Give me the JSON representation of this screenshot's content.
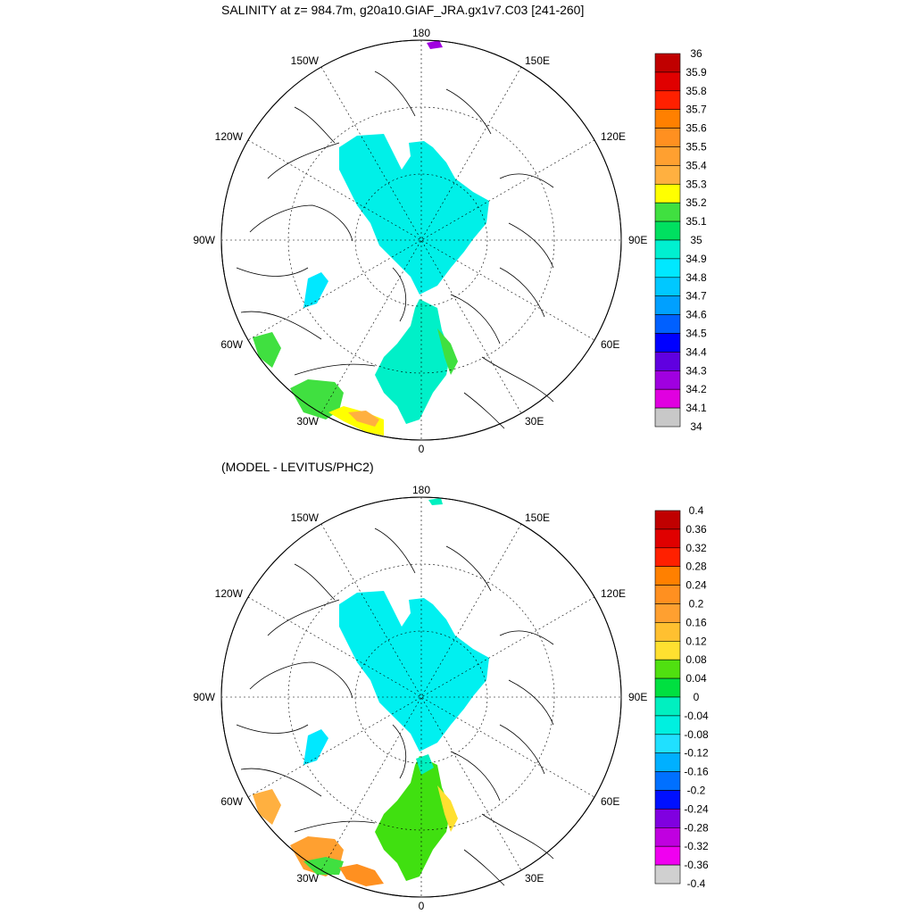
{
  "top_panel": {
    "title": "SALINITY at z= 984.7m, g20a10.GIAF_JRA.gx1v7.C03 [241-260]",
    "lon_labels": {
      "top": "180",
      "bottom": "0",
      "left": "90W",
      "right": "90E",
      "upper_left_1": "150W",
      "upper_left_2": "120W",
      "lower_left_1": "60W",
      "lower_left_2": "30W",
      "upper_right_1": "150E",
      "upper_right_2": "120E",
      "lower_right_1": "60E",
      "lower_right_2": "30E"
    },
    "colorbar": {
      "labels": [
        "36",
        "35.9",
        "35.8",
        "35.7",
        "35.6",
        "35.5",
        "35.4",
        "35.3",
        "35.2",
        "35.1",
        "35",
        "34.9",
        "34.8",
        "34.7",
        "34.6",
        "34.5",
        "34.4",
        "34.3",
        "34.2",
        "34.1",
        "34"
      ],
      "colors": [
        "#c00000",
        "#e00000",
        "#ff2000",
        "#ff8000",
        "#ff9020",
        "#ffa030",
        "#ffb040",
        "#ffff00",
        "#40e040",
        "#00e060",
        "#00f0d0",
        "#00e8ff",
        "#00c8ff",
        "#00a0ff",
        "#0060ff",
        "#0000ff",
        "#6000e0",
        "#a000e0",
        "#e000e0",
        "#c8c8c8",
        "#707070"
      ]
    }
  },
  "bottom_panel": {
    "title": "(MODEL - LEVITUS/PHC2)",
    "lon_labels": {
      "top": "180",
      "bottom": "0",
      "left": "90W",
      "right": "90E",
      "upper_left_1": "150W",
      "upper_left_2": "120W",
      "lower_left_1": "60W",
      "lower_left_2": "30W",
      "upper_right_1": "150E",
      "upper_right_2": "120E",
      "lower_right_1": "60E",
      "lower_right_2": "30E"
    },
    "colorbar": {
      "labels": [
        "0.4",
        "0.36",
        "0.32",
        "0.28",
        "0.24",
        "0.2",
        "0.16",
        "0.12",
        "0.08",
        "0.04",
        "0",
        "-0.04",
        "-0.08",
        "-0.12",
        "-0.16",
        "-0.2",
        "-0.24",
        "-0.28",
        "-0.32",
        "-0.36",
        "-0.4"
      ],
      "colors": [
        "#c00000",
        "#e00000",
        "#ff2000",
        "#ff8000",
        "#ff9020",
        "#ffa030",
        "#ffc030",
        "#ffe030",
        "#50e010",
        "#00e040",
        "#00f0c0",
        "#00f0e0",
        "#20e0ff",
        "#00b0ff",
        "#0070ff",
        "#0010ff",
        "#8000e0",
        "#c000e0",
        "#f000f0",
        "#d0d0d0",
        "#707070"
      ]
    }
  }
}
